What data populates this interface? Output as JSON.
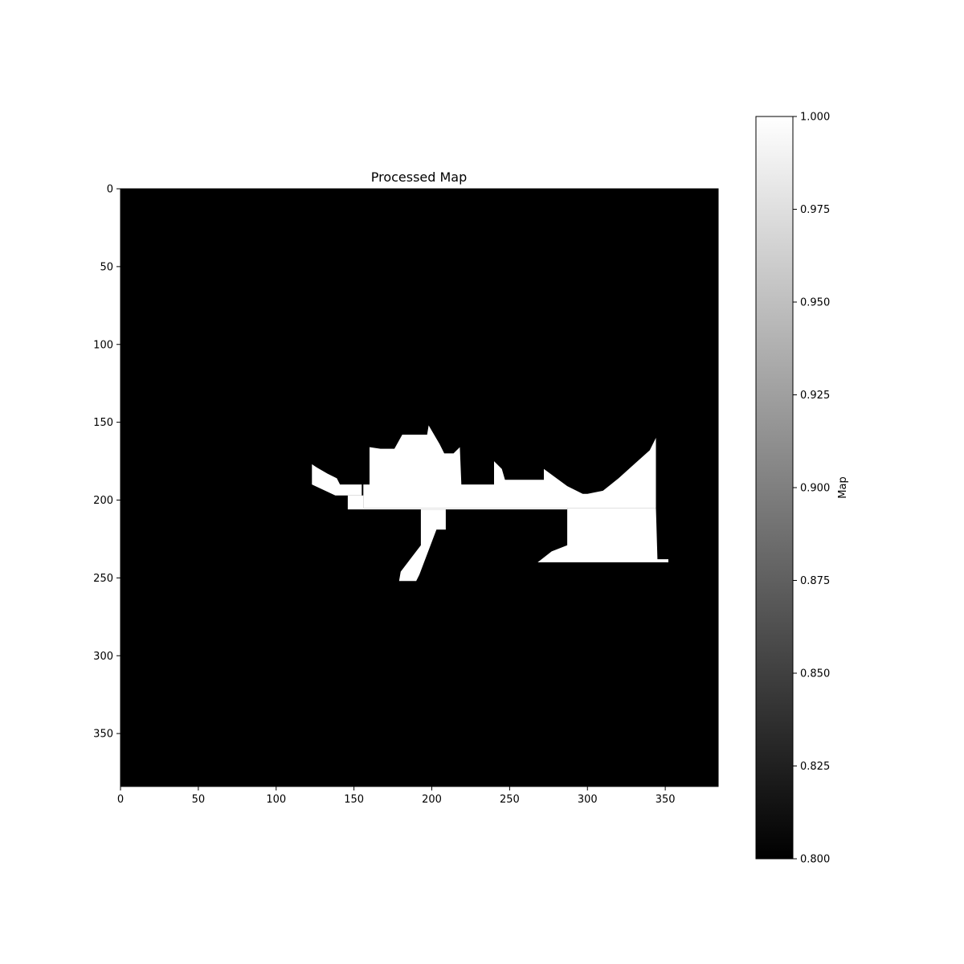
{
  "chart_data": {
    "type": "heatmap",
    "title": "Processed Map",
    "xlabel": "",
    "ylabel": "",
    "grid": false,
    "xlim": [
      0,
      384
    ],
    "ylim": [
      384,
      0
    ],
    "x_ticks": [
      "0",
      "50",
      "100",
      "150",
      "200",
      "250",
      "300",
      "350"
    ],
    "y_ticks": [
      "0",
      "50",
      "100",
      "150",
      "200",
      "250",
      "300",
      "350"
    ],
    "background_value": 0.8,
    "foreground_value": 1.0,
    "colormap": "gray",
    "colors": {
      "low": "#000000",
      "high": "#ffffff"
    },
    "regions": [
      {
        "name": "left-wedge",
        "polygon": [
          [
            123,
            177
          ],
          [
            126,
            179
          ],
          [
            133,
            183
          ],
          [
            139,
            186
          ],
          [
            141,
            190
          ],
          [
            155,
            190
          ],
          [
            155,
            197
          ],
          [
            138,
            197
          ],
          [
            123,
            190
          ]
        ]
      },
      {
        "name": "corridor",
        "polygon": [
          [
            146,
            197
          ],
          [
            156,
            197
          ],
          [
            156,
            205
          ],
          [
            287,
            205
          ],
          [
            287,
            206
          ],
          [
            146,
            206
          ]
        ]
      },
      {
        "name": "upper-block",
        "polygon": [
          [
            160,
            166
          ],
          [
            167,
            167
          ],
          [
            176,
            167
          ],
          [
            181,
            158
          ],
          [
            197,
            158
          ],
          [
            198,
            152
          ],
          [
            205,
            164
          ],
          [
            208,
            170
          ],
          [
            214,
            170
          ],
          [
            218,
            166
          ],
          [
            219,
            190
          ],
          [
            240,
            190
          ],
          [
            240,
            175
          ],
          [
            245,
            180
          ],
          [
            247,
            187
          ],
          [
            272,
            187
          ],
          [
            272,
            180
          ],
          [
            287,
            191
          ],
          [
            297,
            196
          ],
          [
            300,
            196
          ],
          [
            310,
            194
          ],
          [
            320,
            186
          ],
          [
            330,
            177
          ],
          [
            340,
            168
          ],
          [
            344,
            160
          ],
          [
            344,
            205
          ],
          [
            156,
            205
          ],
          [
            156,
            190
          ],
          [
            160,
            190
          ]
        ]
      },
      {
        "name": "lower-leg",
        "polygon": [
          [
            193,
            206
          ],
          [
            209,
            206
          ],
          [
            209,
            219
          ],
          [
            203,
            219
          ],
          [
            192,
            248
          ],
          [
            190,
            252
          ],
          [
            179,
            252
          ],
          [
            180,
            246
          ],
          [
            193,
            229
          ]
        ]
      },
      {
        "name": "right-block",
        "polygon": [
          [
            287,
            205
          ],
          [
            344,
            205
          ],
          [
            345,
            238
          ],
          [
            352,
            238
          ],
          [
            352,
            240
          ],
          [
            268,
            240
          ],
          [
            277,
            233
          ],
          [
            287,
            229
          ]
        ]
      }
    ],
    "colorbar": {
      "label": "Map",
      "min": 0.8,
      "max": 1.0,
      "ticks": [
        "0.800",
        "0.825",
        "0.850",
        "0.875",
        "0.900",
        "0.925",
        "0.950",
        "0.975",
        "1.000"
      ]
    }
  }
}
